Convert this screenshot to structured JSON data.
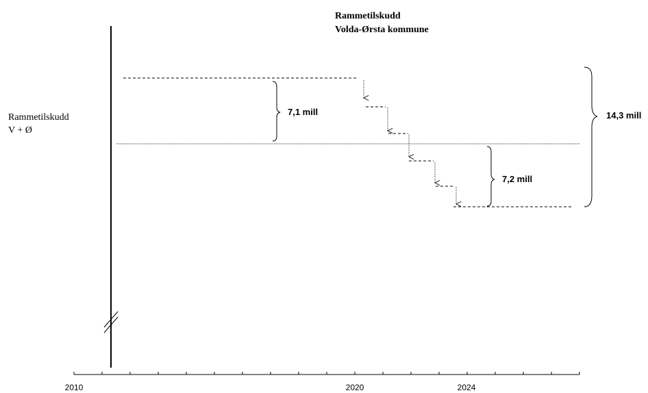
{
  "title": {
    "line1": "Rammetilskudd",
    "line2": "Volda-Ørsta kommune"
  },
  "y_label": {
    "line1": "Rammetilskudd",
    "line2": "V + Ø"
  },
  "brace_labels": {
    "upper": "7,1 mill",
    "lower": "7,2 mill",
    "total": "14,3 mill"
  },
  "x_axis": {
    "ticks": [
      {
        "label": "2010",
        "year": 2010
      },
      {
        "label": "2020",
        "year": 2020
      },
      {
        "label": "2024",
        "year": 2024
      }
    ]
  }
}
